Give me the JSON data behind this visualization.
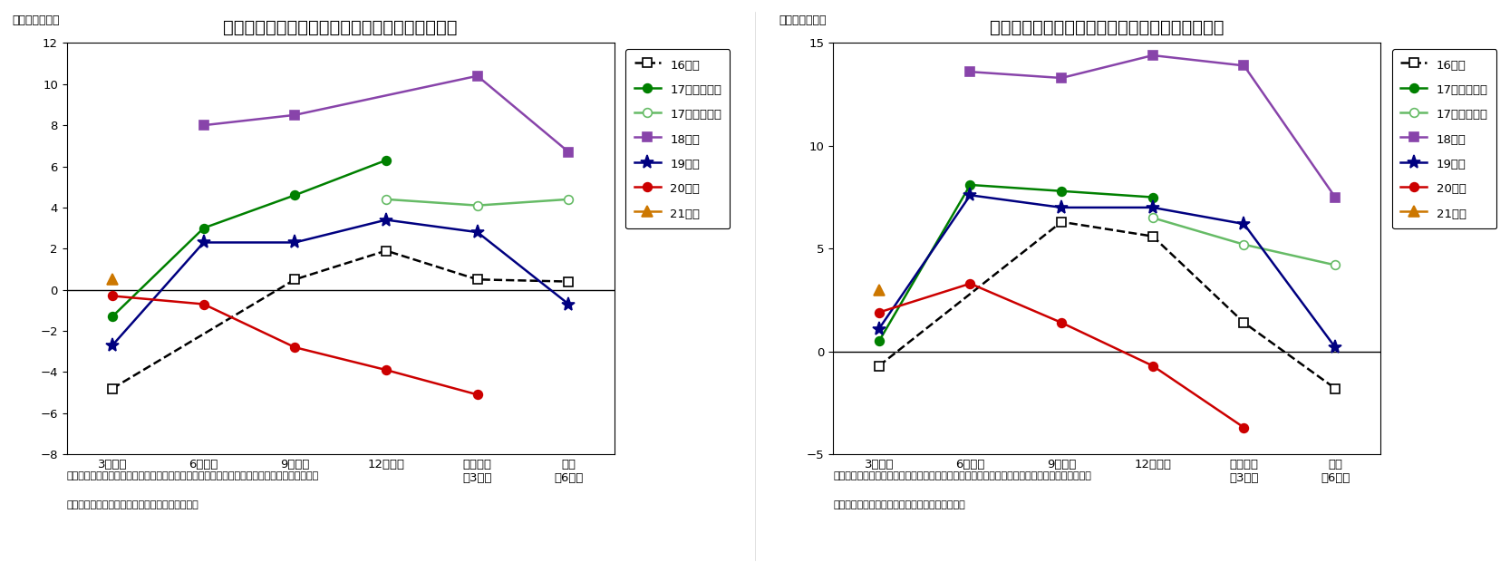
{
  "chart1": {
    "title": "（図表１２）　設備投資計画（全規模・全産業）",
    "ylabel": "（前年比、％）",
    "ylim": [
      -8,
      12
    ],
    "yticks": [
      -8,
      -6,
      -4,
      -2,
      0,
      2,
      4,
      6,
      8,
      10,
      12
    ],
    "xlabels": [
      "3月調査",
      "6月調査",
      "9月調査",
      "12月調査",
      "実績見込\n（3月）",
      "実績\n（6月）"
    ],
    "series": {
      "16年度": {
        "values": [
          -4.8,
          null,
          0.5,
          1.9,
          0.5,
          0.4
        ],
        "color": "#000000",
        "linestyle": "dashed",
        "marker": "s",
        "markerface": "white",
        "zorder": 3
      },
      "17年度（旧）": {
        "values": [
          -1.3,
          3.0,
          4.6,
          6.3,
          null,
          null
        ],
        "color": "#008000",
        "linestyle": "solid",
        "marker": "o",
        "markerface": "#008000",
        "zorder": 4
      },
      "17年度（新）": {
        "values": [
          null,
          null,
          null,
          4.4,
          4.1,
          4.4
        ],
        "color": "#66bb66",
        "linestyle": "solid",
        "marker": "o",
        "markerface": "white",
        "zorder": 4
      },
      "18年度": {
        "values": [
          null,
          8.0,
          8.5,
          null,
          10.4,
          6.7
        ],
        "color": "#8844aa",
        "linestyle": "solid",
        "marker": "s",
        "markerface": "#8844aa",
        "zorder": 5
      },
      "19年度": {
        "values": [
          -2.7,
          2.3,
          2.3,
          3.4,
          2.8,
          -0.7
        ],
        "color": "#000080",
        "linestyle": "solid",
        "marker": "*",
        "markerface": "#000080",
        "zorder": 4
      },
      "20年度": {
        "values": [
          -0.3,
          -0.7,
          -2.8,
          -3.9,
          -5.1,
          null
        ],
        "color": "#cc0000",
        "linestyle": "solid",
        "marker": "o",
        "markerface": "#cc0000",
        "zorder": 4
      },
      "21年度": {
        "values": [
          0.5,
          null,
          null,
          null,
          null,
          null
        ],
        "color": "#cc7700",
        "linestyle": "solid",
        "marker": "^",
        "markerface": "#cc7700",
        "zorder": 6
      }
    },
    "note1": "（注）リース会計対応ベース。１７年度分１２月調査は新旧併記、実績見込み以降は新ベース",
    "note2": "（資料）日本銀行「全国企業短期経済観測調査」"
  },
  "chart2": {
    "title": "（図表１３）　設備投資計画（大企業・全産業）",
    "ylabel": "（前年比、％）",
    "ylim": [
      -5,
      15
    ],
    "yticks": [
      -5,
      0,
      5,
      10,
      15
    ],
    "xlabels": [
      "3月調査",
      "6月調査",
      "9月調査",
      "12月調査",
      "実績見込\n（3月）",
      "実績\n（6月）"
    ],
    "series": {
      "16年度": {
        "values": [
          -0.7,
          null,
          6.3,
          5.6,
          1.4,
          -1.8
        ],
        "color": "#000000",
        "linestyle": "dashed",
        "marker": "s",
        "markerface": "white",
        "zorder": 3
      },
      "17年度（旧）": {
        "values": [
          0.5,
          8.1,
          7.8,
          7.5,
          null,
          null
        ],
        "color": "#008000",
        "linestyle": "solid",
        "marker": "o",
        "markerface": "#008000",
        "zorder": 4
      },
      "17年度（新）": {
        "values": [
          null,
          null,
          null,
          6.5,
          5.2,
          4.2
        ],
        "color": "#66bb66",
        "linestyle": "solid",
        "marker": "o",
        "markerface": "white",
        "zorder": 4
      },
      "18年度": {
        "values": [
          null,
          13.6,
          13.3,
          14.4,
          13.9,
          7.5
        ],
        "color": "#8844aa",
        "linestyle": "solid",
        "marker": "s",
        "markerface": "#8844aa",
        "zorder": 5
      },
      "19年度": {
        "values": [
          1.1,
          7.6,
          7.0,
          7.0,
          6.2,
          0.2
        ],
        "color": "#000080",
        "linestyle": "solid",
        "marker": "*",
        "markerface": "#000080",
        "zorder": 4
      },
      "20年度": {
        "values": [
          1.9,
          3.3,
          1.4,
          -0.7,
          -3.7,
          null
        ],
        "color": "#cc0000",
        "linestyle": "solid",
        "marker": "o",
        "markerface": "#cc0000",
        "zorder": 4
      },
      "21年度": {
        "values": [
          3.0,
          null,
          null,
          null,
          null,
          null
        ],
        "color": "#cc7700",
        "linestyle": "solid",
        "marker": "^",
        "markerface": "#cc7700",
        "zorder": 6
      }
    },
    "note1": "（注）リース会計対応ベース。１７年度分は１２月調査は新旧併記、実績見込み以降は新ベース",
    "note2": "（資料）日本銀行「全国企業短期経済観測調査」"
  },
  "legend_labels": [
    "16年度",
    "17年度（旧）",
    "17年度（新）",
    "18年度",
    "19年度",
    "20年度",
    "21年度"
  ],
  "background_color": "#ffffff"
}
